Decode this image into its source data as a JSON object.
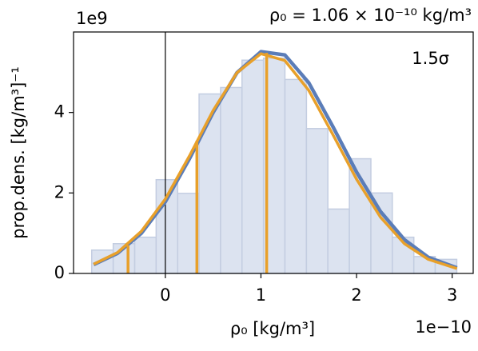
{
  "chart_data": {
    "type": "histogram",
    "title": "ρ₀ = 1.06 × 10⁻¹⁰ kg/m³",
    "x_label": "ρ₀ [kg/m³]",
    "y_label": "prop.dens. [kg/m³]⁻¹",
    "x_offset_label": "1e−10",
    "y_offset_label": "1e9",
    "annotation": "1.5σ",
    "bins": [
      -0.77,
      -0.545,
      -0.32,
      -0.096,
      0.129,
      0.353,
      0.578,
      0.802,
      1.027,
      1.251,
      1.476,
      1.7,
      1.925,
      2.15,
      2.374,
      2.599,
      2.823,
      3.048
    ],
    "values": [
      0.58,
      0.74,
      0.9,
      2.33,
      1.99,
      4.46,
      4.62,
      5.3,
      5.35,
      4.82,
      3.6,
      1.6,
      2.85,
      2.0,
      0.9,
      0.42,
      0.35
    ],
    "color": "#dce3f0",
    "edge_color": "#c3cde1",
    "curves": [
      {
        "color": "#5b7db8",
        "x": [
          -0.75,
          -0.5,
          -0.25,
          0,
          0.25,
          0.5,
          0.75,
          1.0,
          1.25,
          1.5,
          1.75,
          2.0,
          2.25,
          2.5,
          2.75,
          3.05
        ],
        "values": [
          0.22,
          0.5,
          1.0,
          1.78,
          2.84,
          4.0,
          4.99,
          5.51,
          5.43,
          4.74,
          3.66,
          2.52,
          1.54,
          0.84,
          0.4,
          0.14
        ]
      },
      {
        "color": "#e8a02a",
        "x": [
          -0.75,
          -0.5,
          -0.25,
          0,
          0.25,
          0.5,
          0.75,
          1.0,
          1.25,
          1.5,
          1.75,
          2.0,
          2.25,
          2.5,
          2.75,
          3.05
        ],
        "values": [
          0.23,
          0.52,
          1.05,
          1.85,
          2.91,
          4.05,
          4.99,
          5.46,
          5.29,
          4.55,
          3.46,
          2.34,
          1.4,
          0.74,
          0.35,
          0.12
        ]
      }
    ],
    "vlines": {
      "color": "#e8a02a",
      "x": [
        -0.39,
        0.33,
        1.06
      ],
      "values": [
        0.7,
        3.3,
        5.48
      ]
    },
    "zero_line_x": 0,
    "xlim": [
      -0.96,
      3.22
    ],
    "ylim": [
      0,
      6.0
    ],
    "xticks": [
      0,
      1,
      2,
      3
    ],
    "yticks": [
      0,
      2,
      4
    ]
  }
}
